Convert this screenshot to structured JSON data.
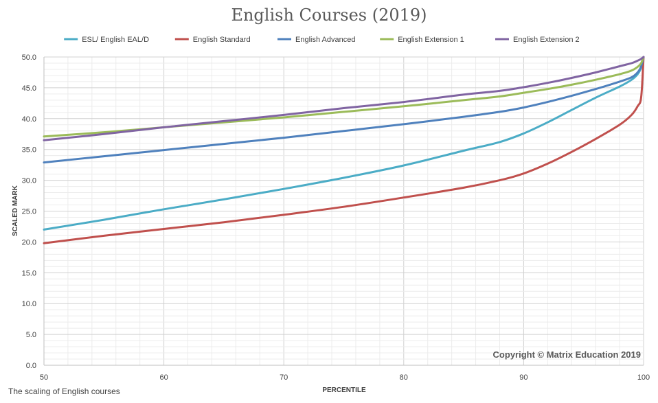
{
  "chart_data": {
    "type": "line",
    "title": "English Courses (2019)",
    "xlabel": "PERCENTILE",
    "ylabel": "SCALED MARK",
    "xlim": [
      50,
      100
    ],
    "ylim": [
      0,
      50
    ],
    "x_ticks": [
      "50",
      "60",
      "70",
      "80",
      "90",
      "100"
    ],
    "y_ticks": [
      "0.0",
      "5.0",
      "10.0",
      "15.0",
      "20.0",
      "25.0",
      "30.0",
      "35.0",
      "40.0",
      "45.0",
      "50.0"
    ],
    "grid": true,
    "legend_position": "top",
    "series": [
      {
        "name": "ESL/ English EAL/D",
        "color": "#4bacc6",
        "points": [
          [
            50,
            22.0
          ],
          [
            55,
            23.6
          ],
          [
            60,
            25.3
          ],
          [
            65,
            26.9
          ],
          [
            70,
            28.6
          ],
          [
            75,
            30.4
          ],
          [
            80,
            32.4
          ],
          [
            85,
            34.8
          ],
          [
            88,
            36.2
          ],
          [
            90,
            37.6
          ],
          [
            92,
            39.4
          ],
          [
            94,
            41.4
          ],
          [
            96,
            43.4
          ],
          [
            98,
            45.2
          ],
          [
            99,
            46.3
          ],
          [
            99.5,
            47.2
          ],
          [
            99.8,
            48.3
          ],
          [
            100,
            50.0
          ]
        ]
      },
      {
        "name": "English Standard",
        "color": "#c0504d",
        "points": [
          [
            50,
            19.8
          ],
          [
            55,
            21.0
          ],
          [
            60,
            22.1
          ],
          [
            65,
            23.2
          ],
          [
            70,
            24.4
          ],
          [
            75,
            25.7
          ],
          [
            80,
            27.2
          ],
          [
            85,
            28.8
          ],
          [
            88,
            30.0
          ],
          [
            90,
            31.1
          ],
          [
            92,
            32.7
          ],
          [
            94,
            34.6
          ],
          [
            96,
            36.7
          ],
          [
            98,
            39.0
          ],
          [
            99,
            40.6
          ],
          [
            99.5,
            42.0
          ],
          [
            99.8,
            43.5
          ],
          [
            100,
            50.0
          ]
        ]
      },
      {
        "name": "English Advanced",
        "color": "#4f81bd",
        "points": [
          [
            50,
            32.9
          ],
          [
            55,
            33.9
          ],
          [
            60,
            34.9
          ],
          [
            65,
            35.9
          ],
          [
            70,
            36.9
          ],
          [
            75,
            38.0
          ],
          [
            80,
            39.1
          ],
          [
            85,
            40.3
          ],
          [
            88,
            41.1
          ],
          [
            90,
            41.8
          ],
          [
            92,
            42.7
          ],
          [
            94,
            43.7
          ],
          [
            96,
            44.8
          ],
          [
            98,
            46.0
          ],
          [
            99,
            46.7
          ],
          [
            99.5,
            47.5
          ],
          [
            99.8,
            48.5
          ],
          [
            100,
            50.0
          ]
        ]
      },
      {
        "name": "English Extension 1",
        "color": "#9bbb59",
        "points": [
          [
            50,
            37.1
          ],
          [
            55,
            37.8
          ],
          [
            60,
            38.6
          ],
          [
            65,
            39.4
          ],
          [
            70,
            40.2
          ],
          [
            75,
            41.1
          ],
          [
            80,
            42.0
          ],
          [
            85,
            43.0
          ],
          [
            88,
            43.6
          ],
          [
            90,
            44.2
          ],
          [
            92,
            44.8
          ],
          [
            94,
            45.5
          ],
          [
            96,
            46.3
          ],
          [
            98,
            47.2
          ],
          [
            99,
            47.8
          ],
          [
            99.5,
            48.4
          ],
          [
            99.8,
            49.0
          ],
          [
            100,
            50.0
          ]
        ]
      },
      {
        "name": "English Extension 2",
        "color": "#8064a2",
        "points": [
          [
            50,
            36.5
          ],
          [
            55,
            37.5
          ],
          [
            60,
            38.6
          ],
          [
            65,
            39.6
          ],
          [
            70,
            40.6
          ],
          [
            75,
            41.7
          ],
          [
            80,
            42.7
          ],
          [
            85,
            43.9
          ],
          [
            88,
            44.5
          ],
          [
            90,
            45.1
          ],
          [
            92,
            45.8
          ],
          [
            94,
            46.6
          ],
          [
            96,
            47.5
          ],
          [
            98,
            48.5
          ],
          [
            99,
            49.0
          ],
          [
            99.5,
            49.4
          ],
          [
            99.8,
            49.7
          ],
          [
            100,
            50.0
          ]
        ]
      }
    ],
    "annotation": "Copyright © Matrix Education 2019"
  },
  "caption": "The scaling of English courses"
}
